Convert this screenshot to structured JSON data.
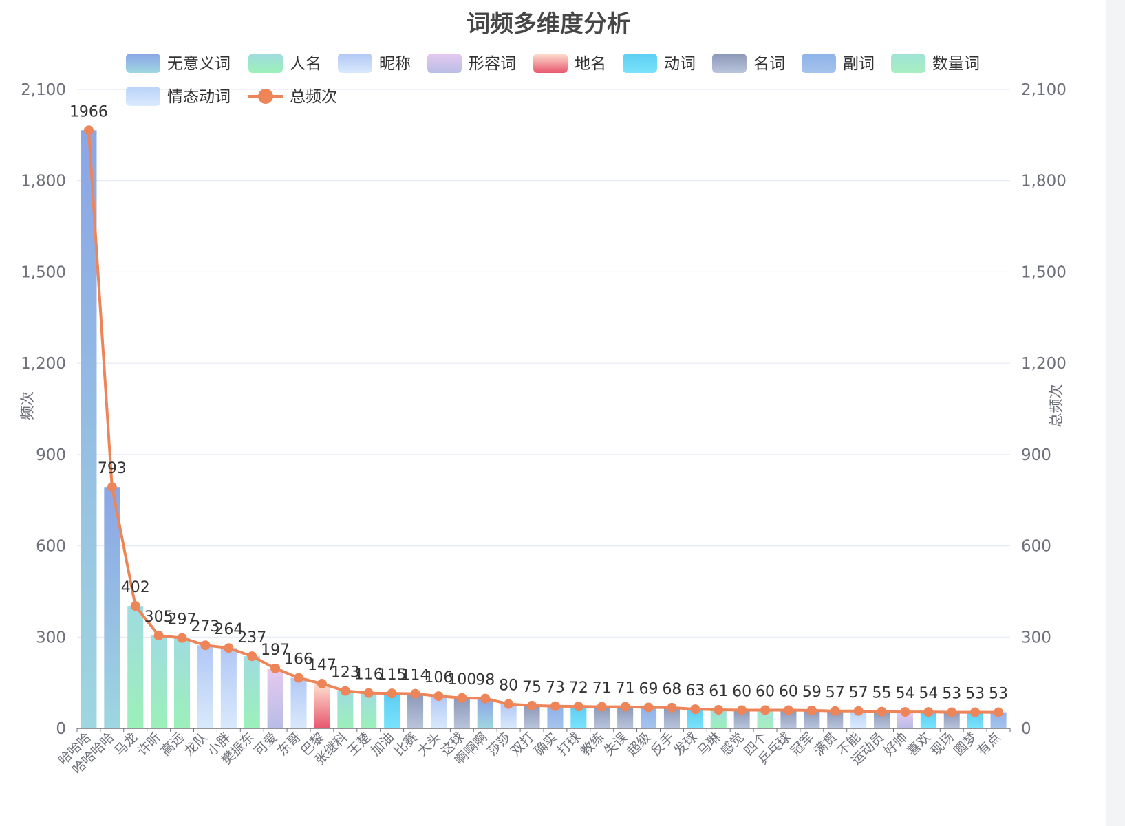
{
  "chart_data": {
    "type": "bar",
    "title": "词频多维度分析",
    "ylabel_left": "频次",
    "ylabel_right": "总频次",
    "ylim": [
      0,
      2100
    ],
    "yticks": [
      "0",
      "300",
      "600",
      "900",
      "1,200",
      "1,500",
      "1,800",
      "2,100"
    ],
    "ytick_values": [
      0,
      300,
      600,
      900,
      1200,
      1500,
      1800,
      2100
    ],
    "legend_position": "top",
    "legend": [
      {
        "name": "无意义词",
        "colors": [
          "#8ba5e6",
          "#9fd6e0"
        ]
      },
      {
        "name": "人名",
        "colors": [
          "#9fdce0",
          "#9cf0b9"
        ]
      },
      {
        "name": "昵称",
        "colors": [
          "#b1c8f6",
          "#d9e9fb"
        ]
      },
      {
        "name": "形容词",
        "colors": [
          "#e6c9f0",
          "#b8bde6"
        ]
      },
      {
        "name": "地名",
        "colors": [
          "#fde0cf",
          "#e8576e"
        ]
      },
      {
        "name": "动词",
        "colors": [
          "#5ccdf2",
          "#79e3fb"
        ]
      },
      {
        "name": "名词",
        "colors": [
          "#8c98b8",
          "#b9c4dc"
        ]
      },
      {
        "name": "副词",
        "colors": [
          "#8fb2e8",
          "#a5c3ec"
        ]
      },
      {
        "name": "数量词",
        "colors": [
          "#9fe3d8",
          "#a7efc0"
        ]
      },
      {
        "name": "情态动词",
        "colors": [
          "#b8d3f9",
          "#dbeafd"
        ]
      },
      {
        "name": "总频次",
        "colors": [
          "#ee8559"
        ]
      }
    ],
    "categories": [
      "哈哈哈",
      "哈哈哈哈",
      "马龙",
      "许昕",
      "高远",
      "龙队",
      "小胖",
      "樊振东",
      "可爱",
      "东哥",
      "巴黎",
      "张继科",
      "王楚",
      "加油",
      "比赛",
      "大头",
      "这球",
      "啊啊啊",
      "莎莎",
      "双打",
      "确实",
      "打球",
      "教练",
      "失误",
      "超级",
      "反手",
      "发球",
      "马琳",
      "感觉",
      "四个",
      "乒乓球",
      "冠军",
      "满贯",
      "不能",
      "运动员",
      "好帅",
      "喜欢",
      "现场",
      "圆梦",
      "有点"
    ],
    "bar_types": [
      "无意义词",
      "无意义词",
      "人名",
      "人名",
      "人名",
      "昵称",
      "昵称",
      "人名",
      "形容词",
      "昵称",
      "地名",
      "人名",
      "人名",
      "动词",
      "名词",
      "昵称",
      "名词",
      "无意义词",
      "昵称",
      "名词",
      "副词",
      "动词",
      "名词",
      "名词",
      "副词",
      "名词",
      "动词",
      "人名",
      "名词",
      "数量词",
      "名词",
      "名词",
      "名词",
      "情态动词",
      "名词",
      "形容词",
      "动词",
      "名词",
      "动词",
      "副词"
    ],
    "series": [
      {
        "name": "总频次",
        "type": "line",
        "values": [
          1966,
          793,
          402,
          305,
          297,
          273,
          264,
          237,
          197,
          166,
          147,
          123,
          116,
          115,
          114,
          106,
          100,
          98,
          80,
          75,
          73,
          72,
          71,
          71,
          69,
          68,
          63,
          61,
          60,
          60,
          60,
          59,
          57,
          57,
          55,
          54,
          54,
          53,
          53,
          53
        ]
      }
    ],
    "data_labels": [
      "1966",
      "793",
      "402",
      "305",
      "297",
      "273",
      "264",
      "237",
      "197",
      "166",
      "147",
      "123",
      "116",
      "115",
      "114",
      "106",
      "100",
      "98",
      "80",
      "75",
      "73",
      "72",
      "71",
      "71",
      "69",
      "68",
      "63",
      "61",
      "60",
      "60",
      "60",
      "59",
      "57",
      "57",
      "55",
      "54",
      "54",
      "53",
      "53",
      "53"
    ],
    "grid": true
  }
}
